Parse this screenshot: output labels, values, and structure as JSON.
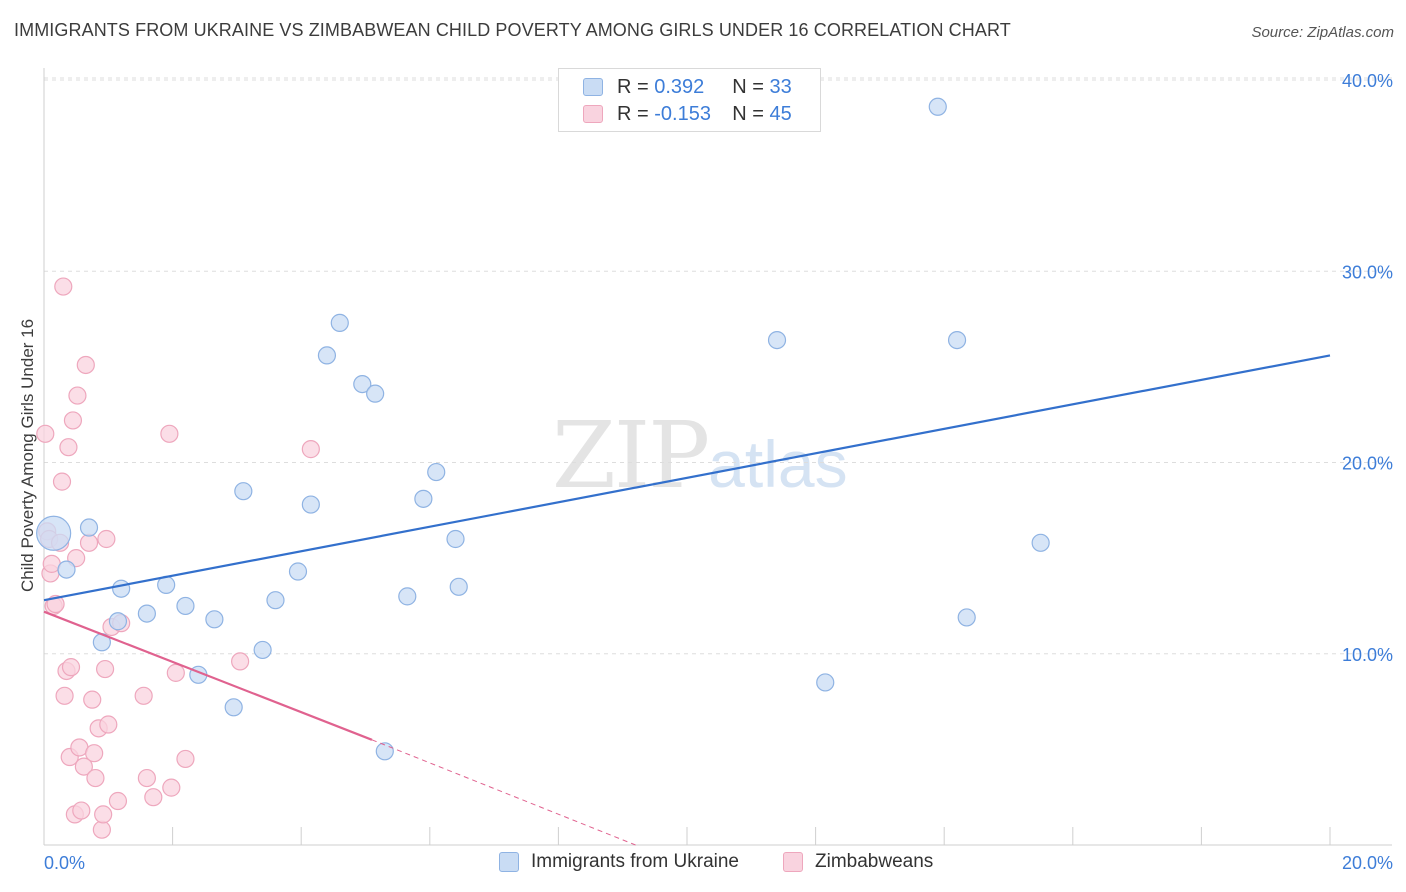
{
  "header": {
    "title": "IMMIGRANTS FROM UKRAINE VS ZIMBABWEAN CHILD POVERTY AMONG GIRLS UNDER 16 CORRELATION CHART",
    "source": "Source: ZipAtlas.com"
  },
  "watermark": {
    "zip": "ZIP",
    "atlas": "atlas"
  },
  "legend": {
    "rows": [
      {
        "r_label": "R =",
        "r_value": "0.392",
        "n_label": "N =",
        "n_value": "33"
      },
      {
        "r_label": "R =",
        "r_value": "-0.153",
        "n_label": "N =",
        "n_value": "45"
      }
    ]
  },
  "colors": {
    "blue_fill": "#c9dcf4",
    "blue_stroke": "#8fb3e3",
    "blue_line": "#3370cc",
    "pink_fill": "#f9d3df",
    "pink_stroke": "#eea7bd",
    "pink_line": "#e0628f",
    "tick_text": "#3d7dd8",
    "grid": "#dddddd"
  },
  "chart_data": {
    "type": "scatter",
    "title": "IMMIGRANTS FROM UKRAINE VS ZIMBABWEAN CHILD POVERTY AMONG GIRLS UNDER 16 CORRELATION CHART",
    "xlabel": "",
    "ylabel": "Child Poverty Among Girls Under 16",
    "xlim": [
      0,
      20
    ],
    "ylim": [
      0,
      40
    ],
    "x_tick_labels": [
      "0.0%",
      "20.0%"
    ],
    "y_ticks": [
      10,
      20,
      30,
      40
    ],
    "y_tick_labels": [
      "10.0%",
      "20.0%",
      "30.0%",
      "40.0%"
    ],
    "grid": true,
    "legend_position": "bottom-center",
    "series": [
      {
        "name": "Immigrants from Ukraine",
        "color": "#8fb3e3",
        "trend": {
          "x": [
            0,
            20
          ],
          "y": [
            12.8,
            25.6
          ]
        },
        "points": [
          [
            0.15,
            16.3
          ],
          [
            0.35,
            14.4
          ],
          [
            0.7,
            16.6
          ],
          [
            0.9,
            10.6
          ],
          [
            1.15,
            11.7
          ],
          [
            1.2,
            13.4
          ],
          [
            1.6,
            12.1
          ],
          [
            1.9,
            13.6
          ],
          [
            2.2,
            12.5
          ],
          [
            2.4,
            8.9
          ],
          [
            2.65,
            11.8
          ],
          [
            2.95,
            7.2
          ],
          [
            3.1,
            18.5
          ],
          [
            3.4,
            10.2
          ],
          [
            3.6,
            12.8
          ],
          [
            4.15,
            17.8
          ],
          [
            3.95,
            14.3
          ],
          [
            4.4,
            25.6
          ],
          [
            4.6,
            27.3
          ],
          [
            4.95,
            24.1
          ],
          [
            5.15,
            23.6
          ],
          [
            5.3,
            4.9
          ],
          [
            5.65,
            13.0
          ],
          [
            5.9,
            18.1
          ],
          [
            6.1,
            19.5
          ],
          [
            6.4,
            16.0
          ],
          [
            6.45,
            13.5
          ],
          [
            11.4,
            26.4
          ],
          [
            12.15,
            8.5
          ],
          [
            13.9,
            38.6
          ],
          [
            14.2,
            26.4
          ],
          [
            14.35,
            11.9
          ],
          [
            15.5,
            15.8
          ]
        ]
      },
      {
        "name": "Zimbabweans",
        "color": "#eea7bd",
        "trend": {
          "x": [
            0,
            5.1
          ],
          "y": [
            12.2,
            5.5
          ]
        },
        "trend_dashed": {
          "x": [
            5.1,
            9.2
          ],
          "y": [
            5.5,
            0
          ]
        },
        "points": [
          [
            0.02,
            21.5
          ],
          [
            0.05,
            16.4
          ],
          [
            0.08,
            16.0
          ],
          [
            0.1,
            14.2
          ],
          [
            0.12,
            14.7
          ],
          [
            0.15,
            12.5
          ],
          [
            0.18,
            12.6
          ],
          [
            0.25,
            15.8
          ],
          [
            0.28,
            19.0
          ],
          [
            0.3,
            29.2
          ],
          [
            0.32,
            7.8
          ],
          [
            0.35,
            9.1
          ],
          [
            0.38,
            20.8
          ],
          [
            0.4,
            4.6
          ],
          [
            0.42,
            9.3
          ],
          [
            0.45,
            22.2
          ],
          [
            0.48,
            1.6
          ],
          [
            0.5,
            15.0
          ],
          [
            0.52,
            23.5
          ],
          [
            0.55,
            5.1
          ],
          [
            0.58,
            1.8
          ],
          [
            0.62,
            4.1
          ],
          [
            0.65,
            25.1
          ],
          [
            0.7,
            15.8
          ],
          [
            0.75,
            7.6
          ],
          [
            0.78,
            4.8
          ],
          [
            0.8,
            3.5
          ],
          [
            0.85,
            6.1
          ],
          [
            0.9,
            0.8
          ],
          [
            0.92,
            1.6
          ],
          [
            0.95,
            9.2
          ],
          [
            0.97,
            16.0
          ],
          [
            1.0,
            6.3
          ],
          [
            1.05,
            11.4
          ],
          [
            1.15,
            2.3
          ],
          [
            1.2,
            11.6
          ],
          [
            1.55,
            7.8
          ],
          [
            1.6,
            3.5
          ],
          [
            1.7,
            2.5
          ],
          [
            1.95,
            21.5
          ],
          [
            1.98,
            3.0
          ],
          [
            2.05,
            9.0
          ],
          [
            2.2,
            4.5
          ],
          [
            3.05,
            9.6
          ],
          [
            4.15,
            20.7
          ]
        ]
      }
    ]
  },
  "bottom_legend": {
    "items": [
      {
        "label": "Immigrants from Ukraine"
      },
      {
        "label": "Zimbabweans"
      }
    ]
  }
}
